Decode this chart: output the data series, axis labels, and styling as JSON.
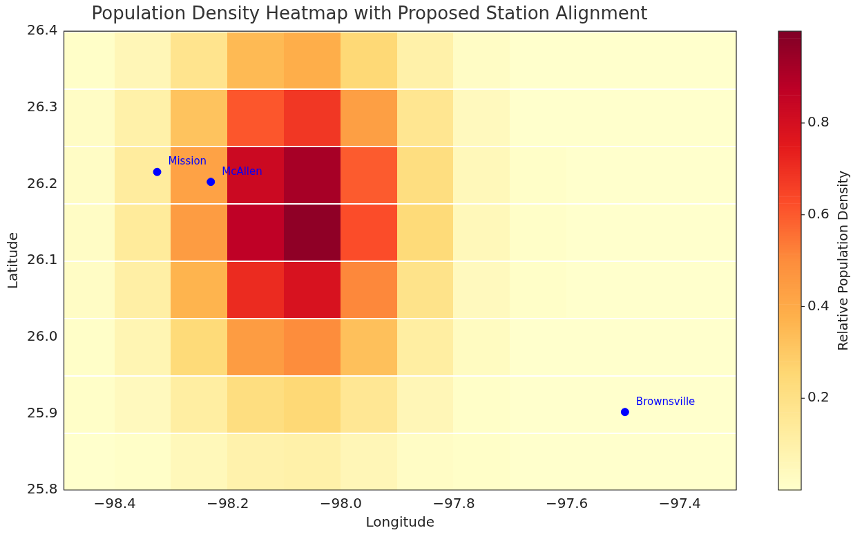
{
  "chart_data": {
    "type": "heatmap",
    "title": "Population Density Heatmap with Proposed Station Alignment",
    "xlabel": "Longitude",
    "ylabel": "Latitude",
    "clabel": "Relative Population Density",
    "x": [
      -98.45,
      -98.35,
      -98.25,
      -98.15,
      -98.05,
      -97.95,
      -97.85,
      -97.75,
      -97.65,
      -97.55,
      -97.45,
      -97.35
    ],
    "y": [
      26.3625,
      26.2875,
      26.2125,
      26.1375,
      26.0625,
      25.9875,
      25.9125,
      25.8375
    ],
    "cells": [
      [
        0.01,
        0.06,
        0.18,
        0.35,
        0.39,
        0.25,
        0.1,
        0.02,
        0.0,
        0.0,
        0.0,
        0.0
      ],
      [
        0.02,
        0.1,
        0.32,
        0.61,
        0.68,
        0.44,
        0.17,
        0.04,
        0.0,
        0.0,
        0.0,
        0.0
      ],
      [
        0.02,
        0.13,
        0.43,
        0.83,
        0.92,
        0.6,
        0.22,
        0.05,
        0.01,
        0.0,
        0.0,
        0.0
      ],
      [
        0.02,
        0.14,
        0.45,
        0.87,
        0.97,
        0.63,
        0.24,
        0.05,
        0.01,
        0.0,
        0.0,
        0.0
      ],
      [
        0.02,
        0.11,
        0.37,
        0.71,
        0.79,
        0.51,
        0.19,
        0.04,
        0.01,
        0.0,
        0.0,
        0.0
      ],
      [
        0.01,
        0.07,
        0.24,
        0.45,
        0.5,
        0.33,
        0.12,
        0.03,
        0.0,
        0.0,
        0.0,
        0.0
      ],
      [
        0.01,
        0.04,
        0.12,
        0.22,
        0.25,
        0.16,
        0.06,
        0.01,
        0.0,
        0.0,
        0.0,
        0.0
      ],
      [
        0.0,
        0.01,
        0.05,
        0.09,
        0.1,
        0.06,
        0.02,
        0.01,
        0.0,
        0.0,
        0.0,
        0.0
      ]
    ],
    "clim": [
      0,
      1
    ],
    "cticks": [
      0.2,
      0.4,
      0.6,
      0.8
    ],
    "xlim": [
      -98.49,
      -97.3
    ],
    "ylim": [
      25.8,
      26.4
    ],
    "xticks": [
      {
        "value": -98.4,
        "label": "−98.4"
      },
      {
        "value": -98.2,
        "label": "−98.2"
      },
      {
        "value": -98.0,
        "label": "−98.0"
      },
      {
        "value": -97.8,
        "label": "−97.8"
      },
      {
        "value": -97.6,
        "label": "−97.6"
      },
      {
        "value": -97.4,
        "label": "−97.4"
      }
    ],
    "yticks": [
      {
        "value": 25.8,
        "label": "25.8"
      },
      {
        "value": 25.9,
        "label": "25.9"
      },
      {
        "value": 26.0,
        "label": "26.0"
      },
      {
        "value": 26.1,
        "label": "26.1"
      },
      {
        "value": 26.2,
        "label": "26.2"
      },
      {
        "value": 26.3,
        "label": "26.3"
      },
      {
        "value": 26.4,
        "label": "26.4"
      }
    ],
    "series": [
      {
        "type": "scatter",
        "name": "Mission",
        "color": "#0000ff",
        "x": [
          -98.325
        ],
        "values": [
          26.216
        ]
      },
      {
        "type": "scatter",
        "name": "McAllen",
        "color": "#0000ff",
        "x": [
          -98.23
        ],
        "values": [
          26.203
        ]
      },
      {
        "type": "scatter",
        "name": "Brownsville",
        "color": "#0000ff",
        "x": [
          -97.497
        ],
        "values": [
          25.902
        ]
      }
    ],
    "marker": "circle",
    "grid": false,
    "legend": false
  }
}
